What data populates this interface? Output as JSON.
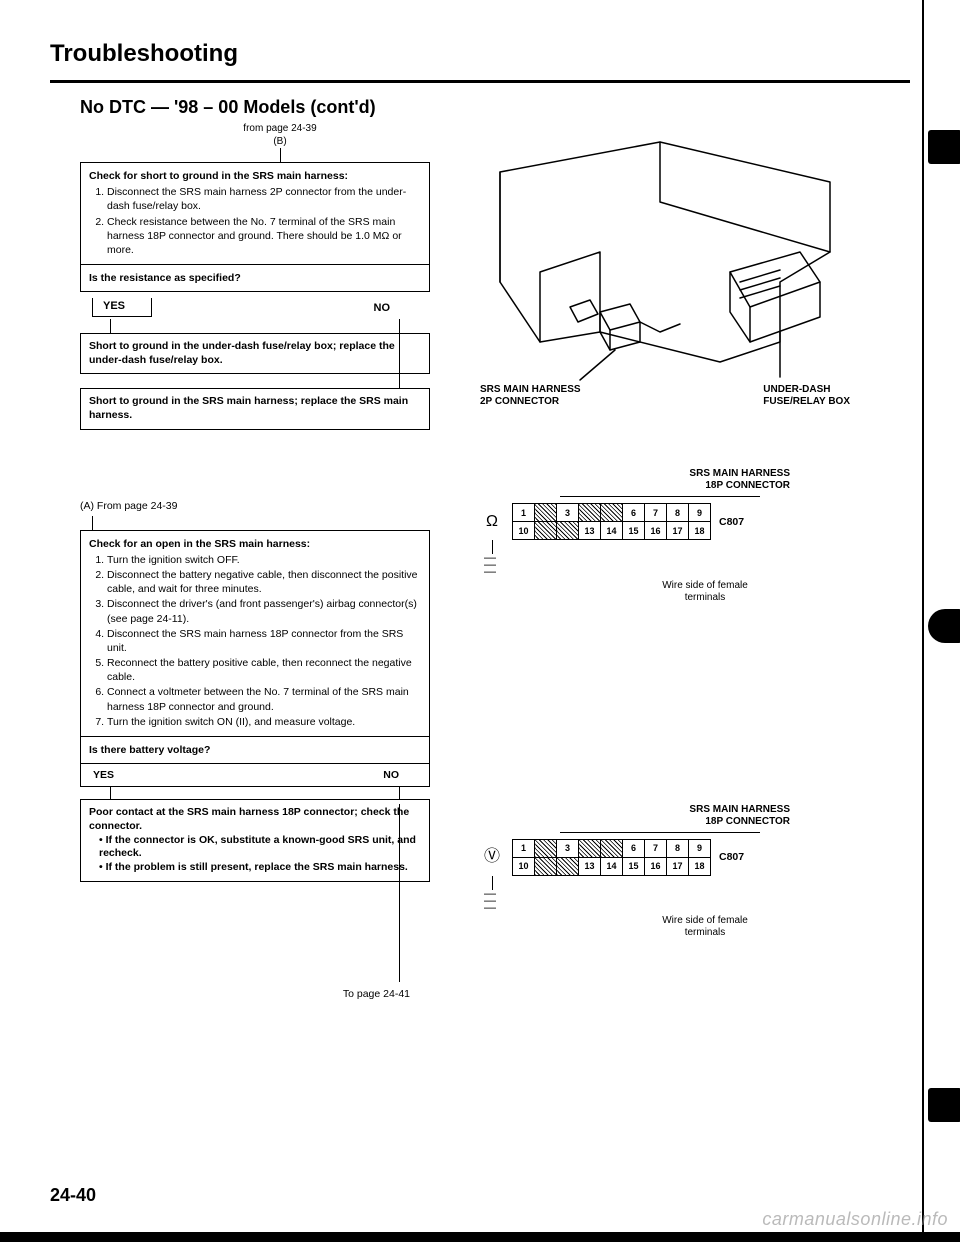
{
  "title": "Troubleshooting",
  "subtitle": "No DTC — '98 – 00 Models (cont'd)",
  "from_page": "from page 24-39",
  "from_ref": "(B)",
  "box1": {
    "heading": "Check for short to ground in the SRS main harness:",
    "steps": [
      "Disconnect the SRS main harness 2P connector from the under-dash fuse/relay box.",
      "Check resistance between the No. 7 terminal of the SRS main harness 18P connector and ground. There should be 1.0 MΩ or more."
    ],
    "question": "Is the resistance as specified?"
  },
  "yes": "YES",
  "no": "NO",
  "action_yes_1": "Short to ground in the under-dash fuse/relay box; replace the under-dash fuse/relay box.",
  "action_no_1": "Short to ground in the SRS main harness; replace the SRS main harness.",
  "cont_a": "(A) From page 24-39",
  "box2": {
    "heading": "Check for an open in the SRS main harness:",
    "steps": [
      "Turn the ignition switch OFF.",
      "Disconnect the battery negative cable, then disconnect the positive cable, and wait for three minutes.",
      "Disconnect the driver's (and front passenger's) airbag connector(s) (see page 24-11).",
      "Disconnect the SRS main harness 18P connector from the SRS unit.",
      "Reconnect the battery positive cable, then reconnect the negative cable.",
      "Connect a voltmeter between the No. 7 terminal of the SRS main harness 18P connector and ground.",
      "Turn the ignition switch ON (II), and measure voltage."
    ],
    "question": "Is there battery voltage?"
  },
  "action_yes_2_l1": "Poor contact at the SRS main harness 18P connector; check the connector.",
  "action_yes_2_b1": "If the connector is OK, substitute a known-good SRS unit, and recheck.",
  "action_yes_2_b2": "If the problem is still present, replace the SRS main harness.",
  "to_page": "To page 24-41",
  "iso": {
    "label_left_l1": "SRS MAIN HARNESS",
    "label_left_l2": "2P CONNECTOR",
    "label_right_l1": "UNDER-DASH",
    "label_right_l2": "FUSE/RELAY BOX"
  },
  "conn": {
    "title_l1": "SRS MAIN HARNESS",
    "title_l2": "18P CONNECTOR",
    "side_label": "C807",
    "note": "Wire side of female\nterminals",
    "row1": [
      "1",
      "/",
      "3",
      "/",
      "/",
      "6",
      "7",
      "8",
      "9"
    ],
    "row2": [
      "10",
      "/",
      "/",
      "13",
      "14",
      "15",
      "16",
      "17",
      "18"
    ]
  },
  "page_num": "24-40",
  "watermark": "carmanualsonline.info"
}
